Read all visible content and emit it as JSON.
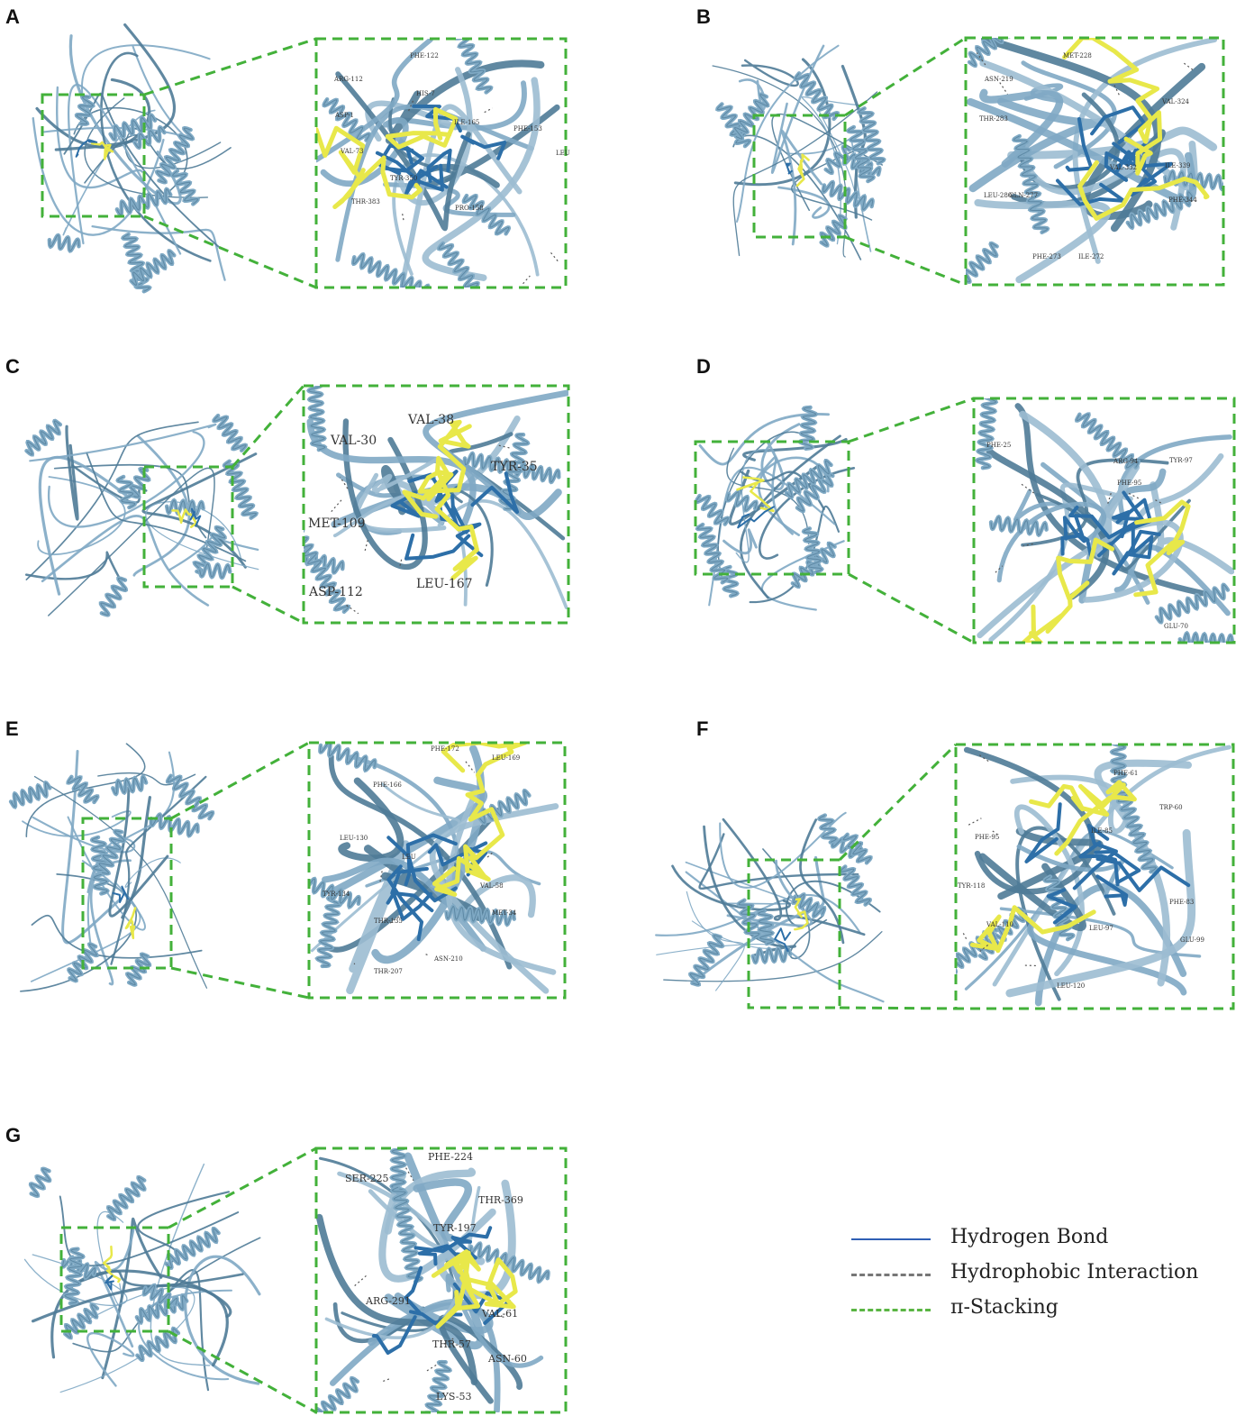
{
  "panels": [
    {
      "letter": "A",
      "residues": [
        "PHE-122",
        "ARG-112",
        "HIS-7",
        "ASP-1",
        "ILE-165",
        "PHE-153",
        "VAL-73",
        "TYR-350",
        "THR-383",
        "PRO-158",
        "LEU"
      ]
    },
    {
      "letter": "B",
      "residues": [
        "MET-228",
        "ASN-219",
        "VAL-324",
        "THR-283",
        "ILE-339",
        "VAL-332",
        "LEU-280",
        "GLN-277",
        "PHE-344",
        "PHE-273",
        "ILE-272"
      ]
    },
    {
      "letter": "C",
      "residues": [
        "VAL-38",
        "VAL-30",
        "TYR-35",
        "MET-109",
        "LEU-167",
        "ASP-112"
      ]
    },
    {
      "letter": "D",
      "residues": [
        "PHE-25",
        "ARG-94",
        "TYR-97",
        "PHE-95",
        "GLU-70"
      ]
    },
    {
      "letter": "E",
      "residues": [
        "PHE-172",
        "LEU-169",
        "PHE-166",
        "LEU-130",
        "LEU",
        "VAL-58",
        "TYR-134",
        "THR-135",
        "MET-34",
        "ASN-210",
        "THR-207"
      ]
    },
    {
      "letter": "F",
      "residues": [
        "PHE-61",
        "TRP-60",
        "PHE-95",
        "ILE-85",
        "TYR-118",
        "PHE-83",
        "VAL-110",
        "LEU-97",
        "LEU-120",
        "GLU-99"
      ]
    },
    {
      "letter": "G",
      "residues": [
        "PHE-224",
        "SER-225",
        "THR-369",
        "TYR-197",
        "ARG-291",
        "VAL-61",
        "THR-57",
        "ASN-60",
        "LYS-53"
      ]
    }
  ],
  "legend": [
    {
      "label": "Hydrogen Bond",
      "color": "#2f5fb5",
      "style": "solid"
    },
    {
      "label": "Hydrophobic Interaction",
      "color": "#777777",
      "style": "dashed"
    },
    {
      "label": "π-Stacking",
      "color": "#5ab543",
      "style": "dashed"
    }
  ],
  "colors": {
    "protein": "#7fa9c4",
    "protein_dark": "#4f7b97",
    "ligand": "#e8e84a",
    "residue": "#2d6fa8",
    "box": "#43b13a"
  }
}
